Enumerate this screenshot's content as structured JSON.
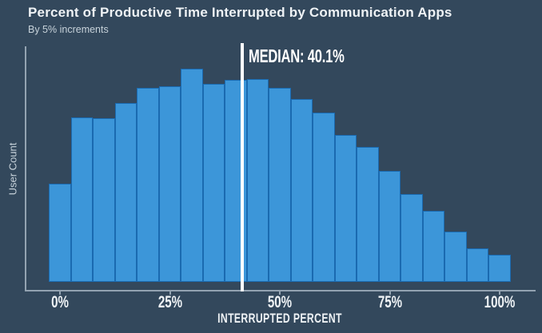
{
  "header": {
    "title": "Percent of Productive Time Interrupted by Communication Apps",
    "subtitle": "By 5% increments"
  },
  "axes": {
    "x_label": "INTERRUPTED PERCENT",
    "y_label": "User Count",
    "x_tick_labels": [
      "0%",
      "25%",
      "50%",
      "75%",
      "100%"
    ]
  },
  "median": {
    "label": "MEDIAN: 40.1%",
    "value_percent": 40.1
  },
  "colors": {
    "background": "#33485c",
    "bar_fill": "#3c96d9",
    "bar_border": "#1a6ab0",
    "axis_line": "#93a3b1",
    "median_line": "#ffffff",
    "text_primary": "#eef2f5",
    "text_secondary": "#c7d2da"
  },
  "chart_data": {
    "type": "bar",
    "subtype": "histogram",
    "title": "Percent of Productive Time Interrupted by Communication Apps",
    "subtitle": "By 5% increments",
    "xlabel": "INTERRUPTED PERCENT",
    "ylabel": "User Count",
    "bin_width_percent": 5,
    "categories": [
      0,
      5,
      10,
      15,
      20,
      25,
      30,
      35,
      40,
      45,
      50,
      55,
      60,
      65,
      70,
      75,
      80,
      85,
      90,
      95,
      100
    ],
    "values": [
      123,
      206,
      205,
      224,
      243,
      245,
      267,
      248,
      253,
      254,
      243,
      229,
      212,
      184,
      169,
      139,
      110,
      89,
      63,
      42,
      34
    ],
    "values_note": "User Count axis has no numeric tick labels; values are relative heights estimated from pixels",
    "ylim": [
      0,
      294
    ],
    "x_axis_ticks_percent": [
      0,
      25,
      50,
      75,
      100
    ],
    "median_percent": 40.1,
    "grid": false,
    "legend": false
  }
}
